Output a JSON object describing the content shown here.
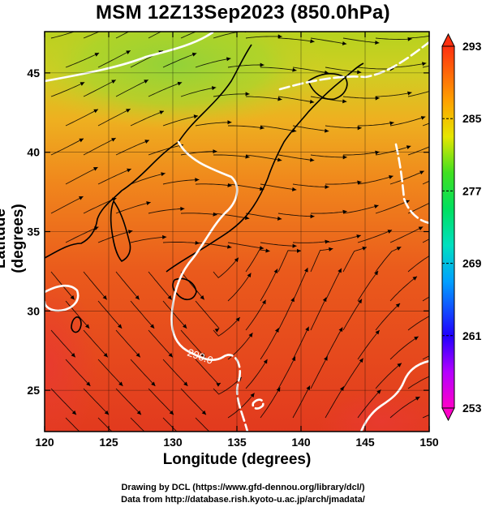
{
  "title": "MSM 12Z13Sep2023 (850.0hPa)",
  "axes": {
    "xlabel": "Longitude (degrees)",
    "ylabel": "Latitude  (degrees)",
    "xrange": [
      120,
      150
    ],
    "yrange": [
      22.4,
      47.6
    ],
    "xticks": [
      120,
      125,
      130,
      135,
      140,
      145,
      150
    ],
    "yticks": [
      25,
      30,
      35,
      40,
      45
    ]
  },
  "colorbar": {
    "min": 253,
    "max": 293,
    "tick_values": [
      253,
      261,
      269,
      277,
      285,
      293
    ],
    "tick_labels": [
      "253",
      "261",
      "269",
      "277",
      "285",
      "293"
    ]
  },
  "contour": {
    "label": "290.0",
    "color": "#ffffff"
  },
  "colors": {
    "warm": "#e8321e",
    "mid": "#f08a1c",
    "cool": "#9acd32",
    "contour": "#ffffff",
    "streamline": "#000000"
  },
  "credits": {
    "line1": "Drawing by DCL (https://www.gfd-dennou.org/library/dcl/)",
    "line2": "Data from http://database.rish.kyoto-u.ac.jp/arch/jmadata/"
  }
}
